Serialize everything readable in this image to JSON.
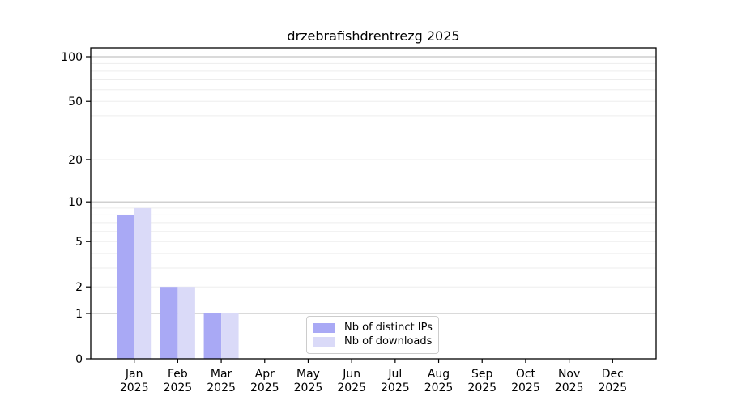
{
  "chart_data": {
    "type": "bar",
    "title": "drzebrafishdrentrezg 2025",
    "xlabel": "",
    "ylabel": "",
    "year_label": "2025",
    "categories": [
      "Jan",
      "Feb",
      "Mar",
      "Apr",
      "May",
      "Jun",
      "Jul",
      "Aug",
      "Sep",
      "Oct",
      "Nov",
      "Dec"
    ],
    "series": [
      {
        "name": "Nb of distinct IPs",
        "color": "#a9a9f5",
        "values": [
          8,
          2,
          1,
          0,
          0,
          0,
          0,
          0,
          0,
          0,
          0,
          0
        ]
      },
      {
        "name": "Nb of downloads",
        "color": "#dadaf8",
        "values": [
          9,
          2,
          1,
          0,
          0,
          0,
          0,
          0,
          0,
          0,
          0,
          0
        ]
      }
    ],
    "yscale": "log1p",
    "ylim": [
      0,
      100
    ],
    "yticks": [
      0,
      1,
      2,
      5,
      10,
      20,
      50,
      100
    ],
    "gridlines": {
      "major": [
        1,
        10,
        100
      ],
      "minor": [
        2,
        3,
        4,
        5,
        6,
        7,
        8,
        9,
        10,
        20,
        30,
        40,
        50,
        60,
        70,
        80,
        90
      ]
    },
    "grid": "horizontal",
    "legend_position": "bottom-center",
    "colors": {
      "major_grid": "#c4c4c4",
      "minor_grid": "#ededed",
      "spine": "#000000",
      "tick": "#000000"
    }
  }
}
